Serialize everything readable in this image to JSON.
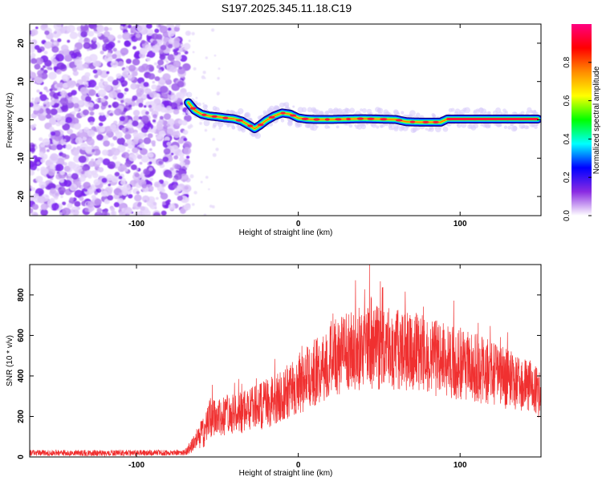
{
  "figure": {
    "title": "S197.2025.345.11.18.C19"
  },
  "chart_data": [
    {
      "type": "heatmap",
      "panel": "spectrogram",
      "xlabel": "Height of straight line (km)",
      "ylabel": "Frequency (Hz)",
      "xlim": [
        -166,
        150
      ],
      "ylim": [
        -25,
        25
      ],
      "xticks": [
        -100,
        0,
        100
      ],
      "yticks": [
        -20,
        -10,
        0,
        10,
        20
      ],
      "noise_region_x": [
        -166,
        -68
      ],
      "signal_onset_x": -68,
      "trace_points": {
        "x": [
          -68,
          -64,
          -60,
          -55,
          -50,
          -45,
          -40,
          -35,
          -30,
          -27,
          -24,
          -20,
          -15,
          -10,
          -5,
          0,
          5,
          10,
          20,
          30,
          40,
          50,
          60,
          67,
          75,
          80,
          88,
          92,
          100,
          110,
          120,
          130,
          140,
          148
        ],
        "y": [
          4.5,
          2.5,
          1.5,
          1.0,
          0.8,
          0.5,
          0.3,
          -0.3,
          -1.5,
          -2.3,
          -1.5,
          -0.2,
          1.0,
          1.8,
          1.5,
          0.5,
          0.2,
          0.1,
          0.1,
          0.2,
          0.3,
          0.2,
          0.1,
          -0.5,
          -0.6,
          -0.6,
          -0.6,
          0.2,
          0.2,
          0.2,
          0.2,
          0.2,
          0.2,
          0.2
        ]
      },
      "colorbar": {
        "label": "Normalized spectral amplitude",
        "range": [
          0,
          1
        ],
        "ticks": [
          "0.0",
          "0.2",
          "0.4",
          "0.6",
          "0.8"
        ],
        "tick_values": [
          0.0,
          0.2,
          0.4,
          0.6,
          0.8
        ],
        "colors": [
          "#ffffff",
          "#8a2be2",
          "#0000ff",
          "#00ffff",
          "#00ff00",
          "#ffff00",
          "#ff8c00",
          "#ff0000",
          "#ff0080"
        ]
      }
    },
    {
      "type": "line",
      "panel": "snr",
      "xlabel": "Height of straight line (km)",
      "ylabel": "SNR (10 * v/v)",
      "xlim": [
        -166,
        150
      ],
      "ylim": [
        0,
        950
      ],
      "xticks": [
        -100,
        0,
        100
      ],
      "yticks": [
        0,
        200,
        400,
        600,
        800
      ],
      "color": "#f03030",
      "envelope": {
        "x": [
          -166,
          -100,
          -70,
          -58,
          -55,
          -50,
          -40,
          -30,
          -20,
          -10,
          0,
          10,
          20,
          30,
          40,
          50,
          60,
          70,
          80,
          90,
          100,
          110,
          120,
          130,
          140,
          150
        ],
        "mean": [
          20,
          20,
          22,
          130,
          180,
          200,
          210,
          230,
          260,
          300,
          360,
          420,
          480,
          520,
          540,
          540,
          530,
          520,
          500,
          480,
          460,
          440,
          410,
          380,
          350,
          320
        ],
        "spread": [
          15,
          15,
          15,
          80,
          100,
          100,
          100,
          110,
          120,
          130,
          150,
          170,
          190,
          200,
          210,
          210,
          200,
          200,
          190,
          190,
          180,
          170,
          160,
          150,
          140,
          130
        ]
      },
      "peak": {
        "x": 44,
        "y": 950
      }
    }
  ]
}
